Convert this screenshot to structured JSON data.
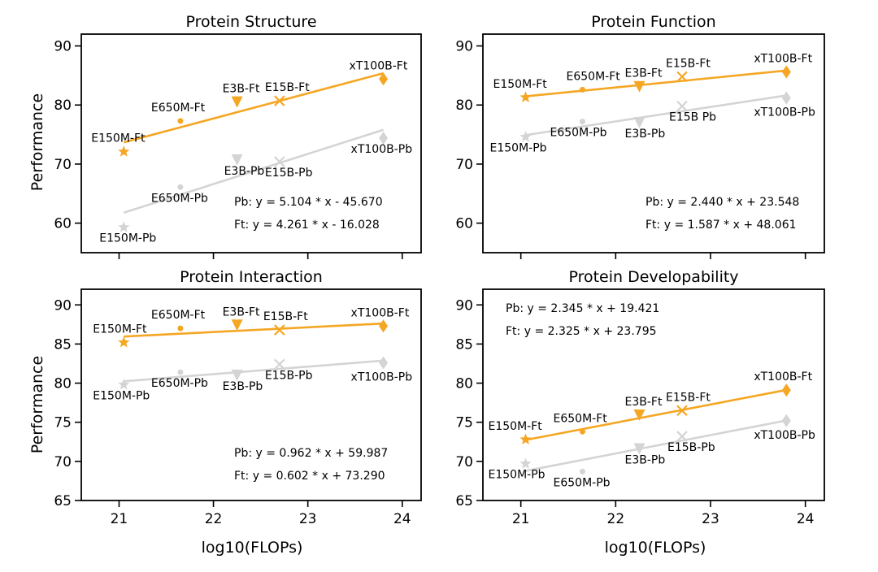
{
  "figure": {
    "xlabel": "log10(FLOPs)",
    "ylabel": "Performance",
    "colors": {
      "ft": "#f5a623",
      "pb": "#d4d4d4",
      "text": "#000000"
    }
  },
  "chart_data": [
    {
      "type": "scatter",
      "title": "Protein Structure",
      "xlim": [
        20.6,
        24.2
      ],
      "ylim": [
        55,
        92
      ],
      "yticks": [
        60,
        70,
        80,
        90
      ],
      "xticks": [
        21,
        22,
        23,
        24
      ],
      "series": [
        {
          "name": "Ft",
          "color": "#f5a623",
          "points": [
            {
              "label": "E150M-Ft",
              "x": 21.05,
              "y": 72.1,
              "marker": "star"
            },
            {
              "label": "E650M-Ft",
              "x": 21.65,
              "y": 77.3,
              "marker": "circle"
            },
            {
              "label": "E3B-Ft",
              "x": 22.25,
              "y": 80.5,
              "marker": "triangle-down"
            },
            {
              "label": "E15B-Ft",
              "x": 22.7,
              "y": 80.7,
              "marker": "x"
            },
            {
              "label": "xT100B-Ft",
              "x": 23.8,
              "y": 84.4,
              "marker": "diamond"
            }
          ],
          "fit": {
            "slope": 4.261,
            "intercept": -16.028,
            "equation": "Ft: y = 4.261 * x - 16.028"
          }
        },
        {
          "name": "Pb",
          "color": "#d4d4d4",
          "points": [
            {
              "label": "E150M-Pb",
              "x": 21.05,
              "y": 59.3,
              "marker": "star"
            },
            {
              "label": "E650M-Pb",
              "x": 21.65,
              "y": 66.1,
              "marker": "circle"
            },
            {
              "label": "E3B-Pb",
              "x": 22.25,
              "y": 70.7,
              "marker": "triangle-down"
            },
            {
              "label": "E15B-Pb",
              "x": 22.7,
              "y": 70.4,
              "marker": "x"
            },
            {
              "label": "xT100B-Pb",
              "x": 23.8,
              "y": 74.4,
              "marker": "diamond"
            }
          ],
          "fit": {
            "slope": 5.104,
            "intercept": -45.67,
            "equation": "Pb: y = 5.104 * x - 45.670"
          }
        }
      ]
    },
    {
      "type": "scatter",
      "title": "Protein Function",
      "xlim": [
        20.6,
        24.2
      ],
      "ylim": [
        55,
        92
      ],
      "yticks": [
        60,
        70,
        80,
        90
      ],
      "xticks": [
        21,
        22,
        23,
        24
      ],
      "series": [
        {
          "name": "Ft",
          "color": "#f5a623",
          "points": [
            {
              "label": "E150M-Ft",
              "x": 21.05,
              "y": 81.3,
              "marker": "star"
            },
            {
              "label": "E650M-Ft",
              "x": 21.65,
              "y": 82.6,
              "marker": "circle"
            },
            {
              "label": "E3B-Ft",
              "x": 22.25,
              "y": 83.1,
              "marker": "triangle-down"
            },
            {
              "label": "E15B-Ft",
              "x": 22.7,
              "y": 84.8,
              "marker": "x"
            },
            {
              "label": "xT100B-Ft",
              "x": 23.8,
              "y": 85.6,
              "marker": "diamond"
            }
          ],
          "fit": {
            "slope": 1.587,
            "intercept": 48.061,
            "equation": "Ft: y = 1.587 * x + 48.061"
          }
        },
        {
          "name": "Pb",
          "color": "#d4d4d4",
          "points": [
            {
              "label": "E150M-Pb",
              "x": 21.05,
              "y": 74.6,
              "marker": "star"
            },
            {
              "label": "E650M-Pb",
              "x": 21.65,
              "y": 77.2,
              "marker": "circle"
            },
            {
              "label": "E3B-Pb",
              "x": 22.25,
              "y": 77.0,
              "marker": "triangle-down"
            },
            {
              "label": "E15B Pb",
              "x": 22.7,
              "y": 79.8,
              "marker": "x"
            },
            {
              "label": "xT100B-Pb",
              "x": 23.8,
              "y": 81.2,
              "marker": "diamond"
            }
          ],
          "fit": {
            "slope": 2.44,
            "intercept": 23.548,
            "equation": "Pb: y = 2.440 * x + 23.548"
          }
        }
      ]
    },
    {
      "type": "scatter",
      "title": "Protein Interaction",
      "xlim": [
        20.6,
        24.2
      ],
      "ylim": [
        65,
        92
      ],
      "yticks": [
        65,
        70,
        75,
        80,
        85,
        90
      ],
      "xticks": [
        21,
        22,
        23,
        24
      ],
      "series": [
        {
          "name": "Ft",
          "color": "#f5a623",
          "points": [
            {
              "label": "E150M-Ft",
              "x": 21.05,
              "y": 85.2,
              "marker": "star"
            },
            {
              "label": "E650M-Ft",
              "x": 21.65,
              "y": 87.0,
              "marker": "circle"
            },
            {
              "label": "E3B-Ft",
              "x": 22.25,
              "y": 87.4,
              "marker": "triangle-down"
            },
            {
              "label": "E15B-Ft",
              "x": 22.7,
              "y": 86.8,
              "marker": "x"
            },
            {
              "label": "xT100B-Ft",
              "x": 23.8,
              "y": 87.3,
              "marker": "diamond"
            }
          ],
          "fit": {
            "slope": 0.602,
            "intercept": 73.29,
            "equation": "Ft: y = 0.602 * x + 73.290"
          }
        },
        {
          "name": "Pb",
          "color": "#d4d4d4",
          "points": [
            {
              "label": "E150M-Pb",
              "x": 21.05,
              "y": 79.8,
              "marker": "star"
            },
            {
              "label": "E650M-Pb",
              "x": 21.65,
              "y": 81.4,
              "marker": "circle"
            },
            {
              "label": "E3B-Pb",
              "x": 22.25,
              "y": 81.0,
              "marker": "triangle-down"
            },
            {
              "label": "E15B-Pb",
              "x": 22.7,
              "y": 82.4,
              "marker": "x"
            },
            {
              "label": "xT100B-Pb",
              "x": 23.8,
              "y": 82.6,
              "marker": "diamond"
            }
          ],
          "fit": {
            "slope": 0.962,
            "intercept": 59.987,
            "equation": "Pb: y = 0.962 * x + 59.987"
          }
        }
      ]
    },
    {
      "type": "scatter",
      "title": "Protein Developability",
      "xlim": [
        20.6,
        24.2
      ],
      "ylim": [
        65,
        92
      ],
      "yticks": [
        65,
        70,
        75,
        80,
        85,
        90
      ],
      "xticks": [
        21,
        22,
        23,
        24
      ],
      "series": [
        {
          "name": "Ft",
          "color": "#f5a623",
          "points": [
            {
              "label": "E150M-Ft",
              "x": 21.05,
              "y": 72.8,
              "marker": "star"
            },
            {
              "label": "E650M-Ft",
              "x": 21.65,
              "y": 73.8,
              "marker": "circle"
            },
            {
              "label": "E3B-Ft",
              "x": 22.25,
              "y": 75.9,
              "marker": "triangle-down"
            },
            {
              "label": "E15B-Ft",
              "x": 22.7,
              "y": 76.5,
              "marker": "x"
            },
            {
              "label": "xT100B-Ft",
              "x": 23.8,
              "y": 79.1,
              "marker": "diamond"
            }
          ],
          "fit": {
            "slope": 2.325,
            "intercept": 23.795,
            "equation": "Ft: y = 2.325 * x + 23.795"
          }
        },
        {
          "name": "Pb",
          "color": "#d4d4d4",
          "points": [
            {
              "label": "E150M-Pb",
              "x": 21.05,
              "y": 69.7,
              "marker": "star"
            },
            {
              "label": "E650M-Pb",
              "x": 21.65,
              "y": 68.7,
              "marker": "circle"
            },
            {
              "label": "E3B-Pb",
              "x": 22.25,
              "y": 71.6,
              "marker": "triangle-down"
            },
            {
              "label": "E15B-Pb",
              "x": 22.7,
              "y": 73.2,
              "marker": "x"
            },
            {
              "label": "xT100B-Pb",
              "x": 23.8,
              "y": 75.2,
              "marker": "diamond"
            }
          ],
          "fit": {
            "slope": 2.345,
            "intercept": 19.421,
            "equation": "Pb: y = 2.345 * x + 19.421"
          }
        }
      ]
    }
  ]
}
